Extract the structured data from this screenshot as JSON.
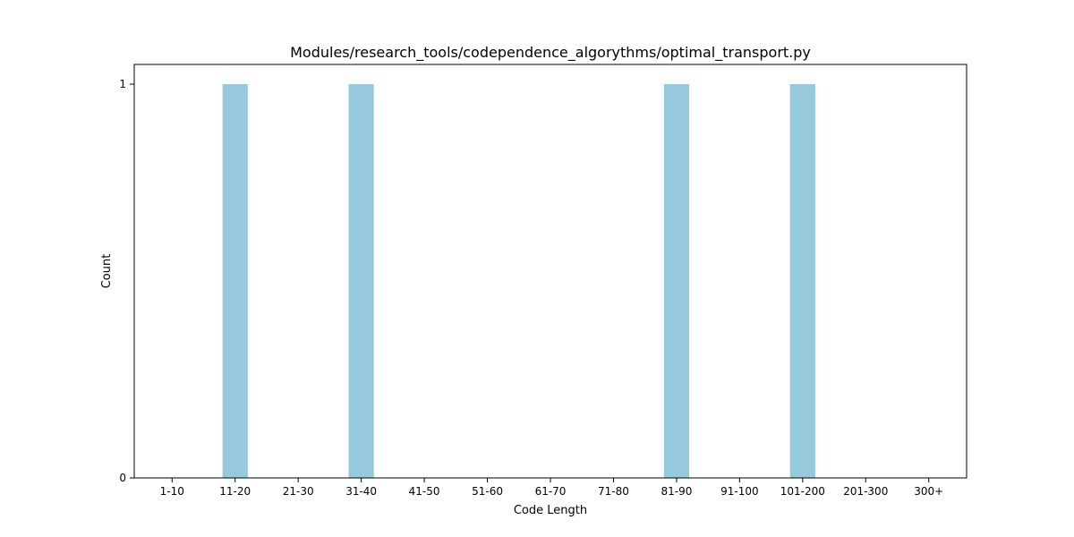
{
  "chart_data": {
    "type": "bar",
    "title": "Modules/research_tools/codependence_algorythms/optimal_transport.py",
    "xlabel": "Code Length",
    "ylabel": "Count",
    "categories": [
      "1-10",
      "11-20",
      "21-30",
      "31-40",
      "41-50",
      "51-60",
      "61-70",
      "71-80",
      "81-90",
      "91-100",
      "101-200",
      "201-300",
      "300+"
    ],
    "values": [
      0,
      1,
      0,
      1,
      0,
      0,
      0,
      0,
      1,
      0,
      1,
      0,
      0
    ],
    "ylim": [
      0,
      1.05
    ],
    "yticks": [
      0,
      1
    ],
    "bar_color": "#96c9dd",
    "grid": false,
    "legend": "none"
  }
}
